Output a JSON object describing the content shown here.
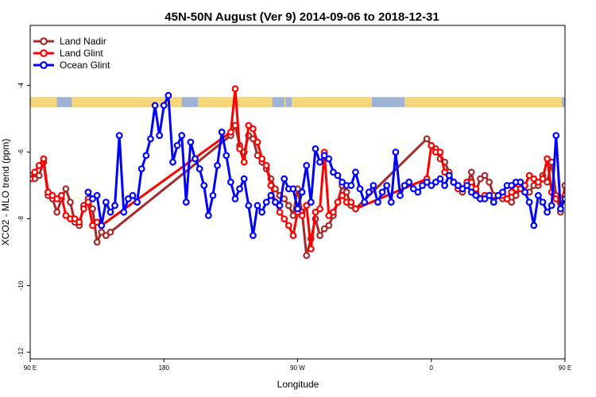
{
  "chart_data": {
    "type": "line",
    "title": "45N-50N August (Ver 9)   2014-09-06 to 2018-12-31",
    "xlabel": "Longitude",
    "ylabel": "XCO2 - MLO trend (ppm)",
    "xlim": [
      90,
      450
    ],
    "ylim": [
      -12.2,
      -2.2
    ],
    "x_ticks": [
      {
        "value": 90,
        "label": "90 E"
      },
      {
        "value": 180,
        "label": "180"
      },
      {
        "value": 270,
        "label": "90 W"
      },
      {
        "value": 360,
        "label": "0"
      },
      {
        "value": 450,
        "label": "90 E"
      },
      {
        "value": 540,
        "label": "180"
      }
    ],
    "y_ticks": [
      {
        "value": -4,
        "label": "-4"
      },
      {
        "value": -6,
        "label": "-6"
      },
      {
        "value": -8,
        "label": "-8"
      },
      {
        "value": -10,
        "label": "-10"
      },
      {
        "value": -12,
        "label": "-12"
      }
    ],
    "grid": false,
    "legend_position": "top-left",
    "land_band": {
      "y_top": -4.35,
      "y_bottom": -4.65,
      "land_color": "#F7D57A",
      "ocean_color": "#9FB3D6"
    },
    "series": [
      {
        "name": "Land Nadir",
        "color": "#A52A2A",
        "x": [
          90,
          93,
          96,
          99,
          102,
          105,
          108,
          111,
          114,
          117,
          120,
          123,
          126,
          129,
          132,
          135,
          138,
          141,
          144,
          225,
          228,
          231,
          234,
          237,
          240,
          243,
          246,
          249,
          252,
          255,
          258,
          261,
          264,
          267,
          270,
          273,
          276,
          279,
          282,
          285,
          288,
          291,
          294,
          297,
          300,
          303,
          306,
          309,
          357,
          360,
          363,
          366,
          369,
          372,
          375,
          378,
          381,
          384,
          387,
          390,
          393,
          396,
          399,
          402,
          405,
          408,
          411,
          414,
          417,
          420,
          423,
          426,
          429,
          432,
          435,
          438,
          441,
          444,
          447,
          450,
          453,
          456,
          459,
          462,
          465,
          468,
          471,
          474,
          477,
          480,
          483,
          486,
          489,
          492,
          495,
          498
        ],
        "y": [
          -6.7,
          -6.8,
          -6.7,
          -6.3,
          -7.3,
          -7.4,
          -7.8,
          -7.4,
          -7.1,
          -7.5,
          -8.1,
          -8.2,
          -7.6,
          -7.4,
          -7.7,
          -8.7,
          -8.4,
          -8.5,
          -8.4,
          -5.5,
          -5.2,
          -5.8,
          -6.0,
          -5.5,
          -5.6,
          -6.1,
          -6.3,
          -6.5,
          -6.8,
          -7.1,
          -7.3,
          -7.4,
          -7.6,
          -7.9,
          -7.1,
          -7.8,
          -9.1,
          -8.6,
          -8.0,
          -8.5,
          -8.3,
          -8.2,
          -7.9,
          -7.5,
          -7.0,
          -7.2,
          -7.6,
          -7.7,
          -5.6,
          -5.8,
          -5.9,
          -6.2,
          -6.3,
          -6.6,
          -6.9,
          -7.0,
          -7.2,
          -7.0,
          -6.6,
          -7.2,
          -6.8,
          -6.7,
          -6.9,
          -7.3,
          -7.3,
          -7.4,
          -7.4,
          -7.5,
          -7.3,
          -7.1,
          -7.2,
          -7.2,
          -7.0,
          -7.0,
          -6.7,
          -6.9,
          -6.3,
          -7.3,
          -7.8,
          -7.0,
          -7.4,
          -7.6,
          -8.1,
          -7.6,
          -7.3,
          -8.8,
          -8.0,
          -8.2,
          -7.7,
          -7.5,
          -7.5,
          -7.6,
          -7.3,
          -7.5,
          -7.5,
          -7.6
        ]
      },
      {
        "name": "Land Glint",
        "color": "#FF0000",
        "x": [
          90,
          93,
          96,
          99,
          102,
          105,
          108,
          111,
          114,
          117,
          120,
          123,
          126,
          129,
          132,
          135,
          138,
          225,
          228,
          231,
          234,
          237,
          240,
          243,
          246,
          249,
          252,
          255,
          258,
          261,
          264,
          267,
          270,
          273,
          276,
          279,
          282,
          285,
          288,
          291,
          294,
          297,
          300,
          303,
          306,
          309,
          357,
          360,
          363,
          366,
          369,
          372,
          375,
          378,
          381,
          384,
          387,
          390,
          393,
          396,
          399,
          402,
          405,
          408,
          411,
          414,
          417,
          420,
          423,
          426,
          429,
          432,
          435,
          438,
          441,
          444,
          447,
          450,
          453,
          456,
          459,
          462,
          465,
          468,
          471,
          474,
          477,
          480,
          483,
          486,
          489,
          492,
          495,
          498
        ],
        "y": [
          -6.8,
          -6.6,
          -6.4,
          -6.2,
          -7.2,
          -7.3,
          -7.4,
          -7.3,
          -7.9,
          -8.0,
          -8.0,
          -8.1,
          -7.7,
          -7.5,
          -8.2,
          -8.1,
          -8.2,
          -5.4,
          -4.1,
          -5.9,
          -6.3,
          -5.2,
          -5.3,
          -5.7,
          -6.2,
          -6.4,
          -7.0,
          -7.5,
          -7.8,
          -8.0,
          -8.2,
          -8.5,
          -7.8,
          -7.9,
          -7.6,
          -8.9,
          -7.8,
          -7.7,
          -6.0,
          -7.9,
          -7.8,
          -7.5,
          -7.3,
          -7.5,
          -7.5,
          -7.7,
          -6.8,
          -5.8,
          -6.0,
          -6.0,
          -6.6,
          -6.7,
          -6.9,
          -7.1,
          -7.1,
          -6.9,
          -6.9,
          -7.1,
          -7.4,
          -7.3,
          -7.3,
          -7.5,
          -7.3,
          -7.3,
          -7.4,
          -7.2,
          -7.1,
          -7.1,
          -7.0,
          -6.7,
          -6.8,
          -6.9,
          -6.8,
          -6.2,
          -7.2,
          -7.4,
          -7.4,
          -7.3,
          -7.6,
          -8.0,
          -8.3,
          -7.6,
          -7.4,
          -8.0,
          -8.4,
          -8.1,
          -8.0,
          -7.7,
          -7.6,
          -7.5,
          -7.3,
          -7.3,
          -7.5,
          -7.4
        ]
      },
      {
        "name": "Ocean Glint",
        "color": "#0000FF",
        "x": [
          129,
          132,
          135,
          138,
          141,
          144,
          147,
          150,
          153,
          156,
          159,
          162,
          165,
          168,
          171,
          174,
          177,
          180,
          183,
          186,
          189,
          192,
          195,
          198,
          201,
          204,
          207,
          210,
          213,
          216,
          219,
          222,
          225,
          228,
          231,
          234,
          237,
          240,
          243,
          246,
          249,
          252,
          255,
          258,
          261,
          264,
          267,
          270,
          273,
          276,
          279,
          282,
          285,
          288,
          291,
          294,
          297,
          300,
          303,
          306,
          309,
          312,
          315,
          318,
          321,
          324,
          327,
          330,
          333,
          336,
          339,
          342,
          345,
          348,
          351,
          354,
          357,
          360,
          363,
          366,
          369,
          372,
          375,
          378,
          381,
          384,
          387,
          390,
          393,
          396,
          399,
          402,
          405,
          408,
          411,
          414,
          417,
          420,
          423,
          426,
          429,
          432,
          435,
          438,
          441,
          444,
          447,
          450,
          453,
          456,
          459,
          462,
          465,
          468,
          471,
          474,
          477,
          480,
          483,
          486,
          489,
          492,
          495,
          498
        ],
        "y": [
          -7.2,
          -7.4,
          -7.3,
          -8.2,
          -7.5,
          -7.8,
          -7.6,
          -5.5,
          -7.8,
          -7.4,
          -7.3,
          -7.5,
          -6.5,
          -6.1,
          -5.6,
          -4.6,
          -5.5,
          -4.6,
          -4.3,
          -6.3,
          -5.8,
          -5.5,
          -7.5,
          -5.7,
          -6.2,
          -6.5,
          -7.0,
          -7.9,
          -7.3,
          -6.4,
          -5.4,
          -6.1,
          -6.9,
          -7.4,
          -7.1,
          -6.8,
          -7.6,
          -8.5,
          -7.6,
          -7.8,
          -7.5,
          -7.3,
          -7.5,
          -7.6,
          -6.8,
          -7.1,
          -7.1,
          -7.7,
          -7.2,
          -6.4,
          -7.5,
          -5.9,
          -6.3,
          -6.1,
          -6.2,
          -6.6,
          -6.7,
          -6.9,
          -7.0,
          -7.0,
          -6.6,
          -7.1,
          -7.5,
          -7.2,
          -7.0,
          -7.5,
          -7.2,
          -7.0,
          -7.5,
          -6.0,
          -7.3,
          -7.0,
          -6.9,
          -7.1,
          -7.2,
          -7.0,
          -6.9,
          -7.0,
          -6.9,
          -6.8,
          -7.0,
          -6.7,
          -6.9,
          -7.0,
          -7.1,
          -7.0,
          -7.2,
          -7.3,
          -7.4,
          -7.4,
          -7.3,
          -7.5,
          -7.3,
          -7.2,
          -7.0,
          -7.0,
          -6.9,
          -6.9,
          -7.2,
          -7.5,
          -8.2,
          -7.3,
          -7.5,
          -7.8,
          -7.6,
          -5.5,
          -7.7,
          -7.4,
          -7.3,
          -7.5,
          -7.6,
          -7.5,
          -7.3,
          -7.2,
          -7.4,
          -7.3,
          -7.4,
          -7.5,
          -7.3,
          -7.2,
          -7.3,
          -7.2,
          -7.4,
          -7.3
        ]
      }
    ]
  }
}
